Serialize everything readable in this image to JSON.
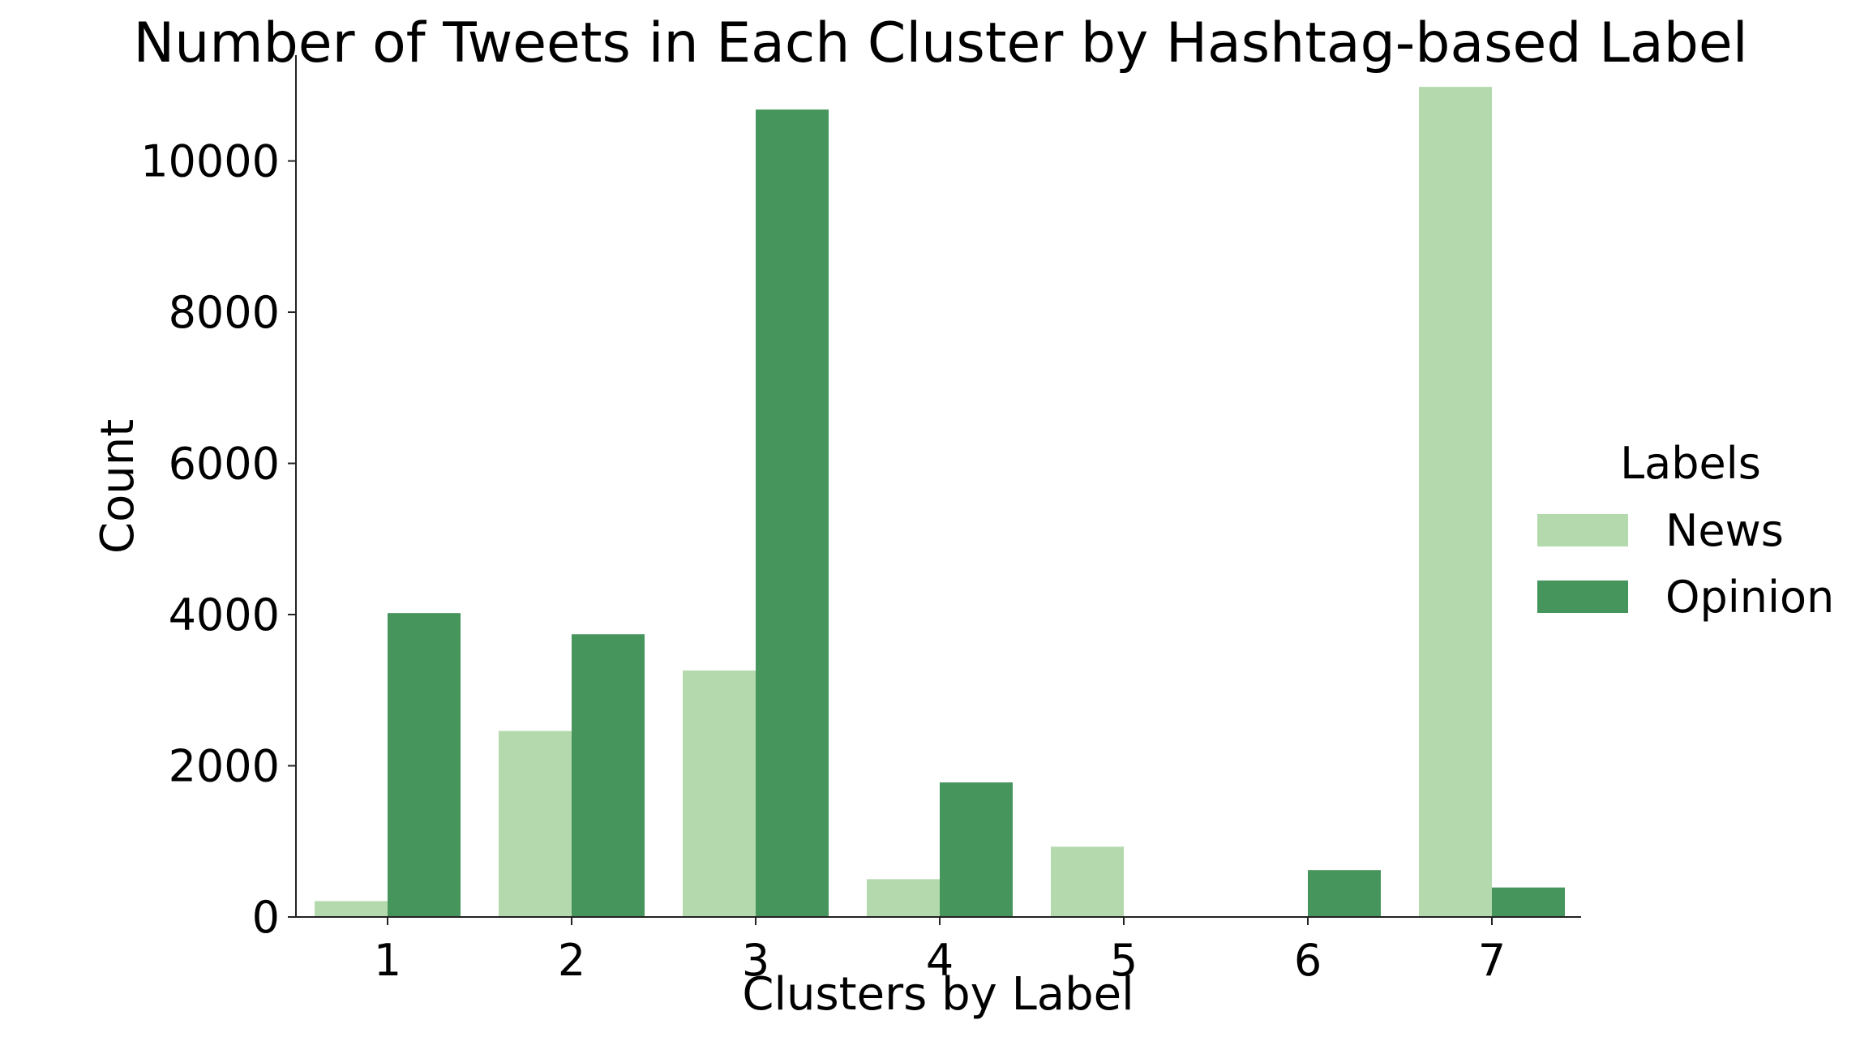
{
  "chart_data": {
    "type": "bar",
    "title": "Number of Tweets in Each Cluster by Hashtag-based Label",
    "xlabel": "Clusters by Label",
    "ylabel": "Count",
    "categories": [
      "1",
      "2",
      "3",
      "4",
      "5",
      "6",
      "7"
    ],
    "series": [
      {
        "name": "News",
        "color": "#b3d9ad",
        "values": [
          210,
          2460,
          3260,
          500,
          930,
          0,
          10980
        ]
      },
      {
        "name": "Opinion",
        "color": "#46955c",
        "values": [
          4020,
          3740,
          10680,
          1780,
          0,
          620,
          390
        ]
      }
    ],
    "ylim": [
      0,
      11400
    ],
    "yticks": [
      0,
      2000,
      4000,
      6000,
      8000,
      10000
    ],
    "grid": false,
    "legend": {
      "title": "Labels",
      "position": "right"
    }
  }
}
